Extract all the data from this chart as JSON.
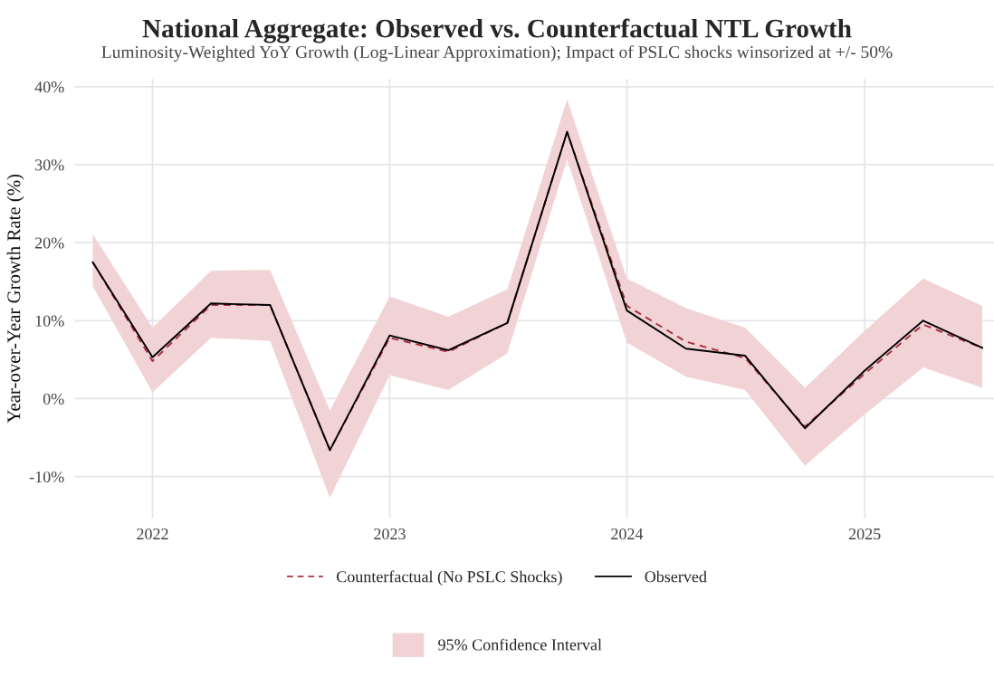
{
  "chart_data": {
    "type": "line",
    "title": "National Aggregate: Observed vs. Counterfactual NTL Growth",
    "subtitle": "Luminosity-Weighted YoY Growth (Log-Linear Approximation); Impact of PSLC shocks winsorized at +/- 50%",
    "ylabel": "Year-over-Year Growth Rate (%)",
    "x": [
      "2021-10-01",
      "2022-01-01",
      "2022-04-01",
      "2022-07-01",
      "2022-10-01",
      "2023-01-01",
      "2023-04-01",
      "2023-07-01",
      "2023-10-01",
      "2024-01-01",
      "2024-04-01",
      "2024-07-01",
      "2024-10-01",
      "2025-01-01",
      "2025-04-01",
      "2025-07-01"
    ],
    "series": [
      {
        "name": "Counterfactual (No PSLC Shocks)",
        "color": "#a83240",
        "line_style": "dashed",
        "values": [
          17.5,
          4.8,
          12.0,
          12.0,
          -6.6,
          7.8,
          6.0,
          9.7,
          34.2,
          11.9,
          7.3,
          5.2,
          -3.6,
          3.2,
          9.5,
          6.5
        ],
        "lower": [
          14.4,
          0.8,
          7.8,
          7.4,
          -12.7,
          3.0,
          1.1,
          5.8,
          30.7,
          7.2,
          2.8,
          1.1,
          -8.6,
          -2.0,
          4.0,
          1.4
        ],
        "upper": [
          21.1,
          9.1,
          16.4,
          16.5,
          -1.5,
          13.1,
          10.5,
          14.0,
          38.4,
          15.4,
          11.6,
          9.1,
          1.4,
          8.7,
          15.4,
          11.9
        ]
      },
      {
        "name": "Observed",
        "color": "#000000",
        "line_style": "solid",
        "values": [
          17.5,
          5.3,
          12.2,
          12.0,
          -6.6,
          8.1,
          6.2,
          9.7,
          34.2,
          11.3,
          6.4,
          5.5,
          -3.8,
          3.6,
          10.0,
          6.5
        ]
      }
    ],
    "xlim": [
      "2021-09-03",
      "2025-07-19"
    ],
    "xticks": [
      {
        "value": "2022-01-01",
        "label": "2022"
      },
      {
        "value": "2023-01-01",
        "label": "2023"
      },
      {
        "value": "2024-01-01",
        "label": "2024"
      },
      {
        "value": "2025-01-01",
        "label": "2025"
      }
    ],
    "ylim": [
      -15.3,
      41
    ],
    "yticks": [
      {
        "value": -10,
        "label": "-10%"
      },
      {
        "value": 0,
        "label": "0%"
      },
      {
        "value": 10,
        "label": "10%"
      },
      {
        "value": 20,
        "label": "20%"
      },
      {
        "value": 30,
        "label": "30%"
      },
      {
        "value": 40,
        "label": "40%"
      }
    ],
    "annotations": [
      "95% Confidence Interval"
    ],
    "grid": true,
    "legend": "bottom"
  }
}
